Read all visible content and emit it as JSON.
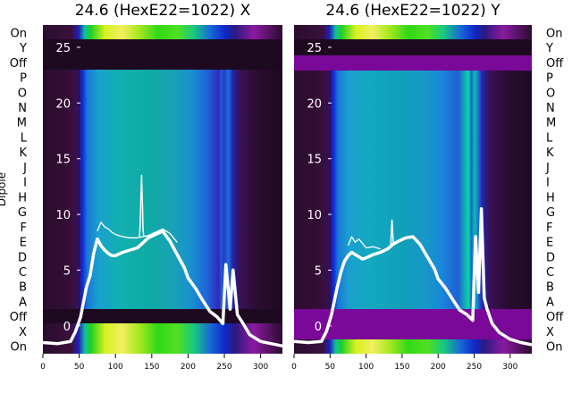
{
  "chart_data": [
    {
      "type": "heatmap",
      "title": "24.6 (HexE22=1022) X",
      "ylabel": "Dipole",
      "xlim": [
        0,
        330
      ],
      "x_ticks": [
        0,
        50,
        100,
        150,
        200,
        250,
        300
      ],
      "y_categories": [
        "On",
        "Y",
        "Off",
        "P",
        "O",
        "N",
        "M",
        "L",
        "K",
        "J",
        "I",
        "H",
        "G",
        "F",
        "E",
        "D",
        "C",
        "B",
        "A",
        "Off",
        "X",
        "On"
      ],
      "overlay_ticks": [
        0,
        5,
        10,
        15,
        20,
        25
      ],
      "overlay_ylim": [
        -2.5,
        27
      ],
      "overlay_series": [
        {
          "x": [
            0,
            20,
            38,
            45,
            52,
            60,
            65,
            70,
            75,
            80,
            85,
            90,
            95,
            100,
            110,
            120,
            130,
            137,
            145,
            155,
            165,
            175,
            185,
            195,
            200,
            210,
            220,
            230,
            240,
            248,
            252,
            258,
            262,
            268,
            275,
            285,
            300,
            315,
            330
          ],
          "y": [
            -1.5,
            -1.6,
            -1.4,
            -0.5,
            0.8,
            3.5,
            4.5,
            6.5,
            7.8,
            7.2,
            6.8,
            6.5,
            6.3,
            6.3,
            6.6,
            6.8,
            7.0,
            7.4,
            7.9,
            8.2,
            8.5,
            7.6,
            6.4,
            5.2,
            4.3,
            3.4,
            2.3,
            1.3,
            0.8,
            0.2,
            5.5,
            1.5,
            5.0,
            1.0,
            0.3,
            -0.8,
            -1.4,
            -1.6,
            -1.8
          ]
        },
        {
          "x": [
            75,
            80,
            85,
            90,
            95,
            100,
            110,
            120,
            130,
            137,
            145,
            155,
            165,
            175,
            185
          ],
          "y": [
            8.5,
            9.3,
            8.9,
            8.7,
            8.4,
            8.2,
            8.0,
            7.9,
            7.9,
            8.0,
            8.1,
            8.4,
            8.7,
            8.3,
            7.5
          ]
        },
        {
          "x": [
            133,
            134,
            135,
            136,
            137,
            138,
            139
          ],
          "y": [
            8.0,
            9.0,
            11.5,
            13.5,
            11.0,
            8.5,
            8.0
          ]
        }
      ]
    },
    {
      "type": "heatmap",
      "title": "24.6 (HexE22=1022) Y",
      "ylabel": "",
      "xlim": [
        0,
        330
      ],
      "x_ticks": [
        0,
        50,
        100,
        150,
        200,
        250,
        300
      ],
      "y_categories": [
        "On",
        "Y",
        "Off",
        "P",
        "O",
        "N",
        "M",
        "L",
        "K",
        "J",
        "I",
        "H",
        "G",
        "F",
        "E",
        "D",
        "C",
        "B",
        "A",
        "Off",
        "X",
        "On"
      ],
      "overlay_ticks": [
        0,
        5,
        10,
        15,
        20,
        25
      ],
      "overlay_ylim": [
        -2.5,
        27
      ],
      "overlay_series": [
        {
          "x": [
            0,
            20,
            38,
            45,
            52,
            60,
            65,
            70,
            75,
            80,
            85,
            90,
            95,
            100,
            110,
            120,
            130,
            137,
            145,
            155,
            165,
            175,
            185,
            195,
            200,
            210,
            220,
            230,
            240,
            248,
            252,
            256,
            260,
            264,
            268,
            275,
            285,
            300,
            315,
            330
          ],
          "y": [
            -1.4,
            -1.5,
            -1.4,
            -0.5,
            1.0,
            3.5,
            4.8,
            5.8,
            6.3,
            6.6,
            6.4,
            6.2,
            6.0,
            6.1,
            6.4,
            6.6,
            6.9,
            7.3,
            7.6,
            7.9,
            8.0,
            7.3,
            6.2,
            5.1,
            4.2,
            3.4,
            2.4,
            1.4,
            1.0,
            0.5,
            8.0,
            3.0,
            10.5,
            2.5,
            1.5,
            0.2,
            -0.6,
            -1.2,
            -1.5,
            -1.7
          ]
        },
        {
          "x": [
            75,
            80,
            85,
            90,
            100,
            110,
            120
          ],
          "y": [
            7.2,
            8.0,
            7.5,
            7.8,
            7.0,
            7.1,
            6.9
          ]
        },
        {
          "x": [
            134,
            136,
            138
          ],
          "y": [
            7.0,
            9.5,
            7.2
          ]
        }
      ]
    }
  ]
}
